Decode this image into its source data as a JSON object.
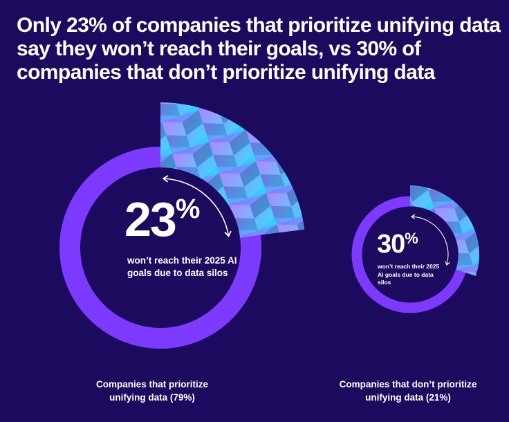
{
  "title": "Only 23% of companies that prioritize unifying data say they won’t reach their goals, vs 30% of companies that don’t prioritize unifying data",
  "colors": {
    "background": "#1c0a5e",
    "ring": "#7c3aff",
    "highlight_from": "#9a6cff",
    "highlight_to": "#26d9ff"
  },
  "chart_data": [
    {
      "type": "pie",
      "slice_value": 23,
      "unit": "%",
      "value_label": "23",
      "percent_sign": "%",
      "description": "won’t reach their 2025 AI goals due to data silos",
      "group_label": "Companies that prioritize unifying data (79%)"
    },
    {
      "type": "pie",
      "slice_value": 30,
      "unit": "%",
      "value_label": "30",
      "percent_sign": "%",
      "description": "won’t reach their 2025 AI goals due to data silos",
      "group_label": "Companies that don’t prioritize unifying data (21%)"
    }
  ]
}
